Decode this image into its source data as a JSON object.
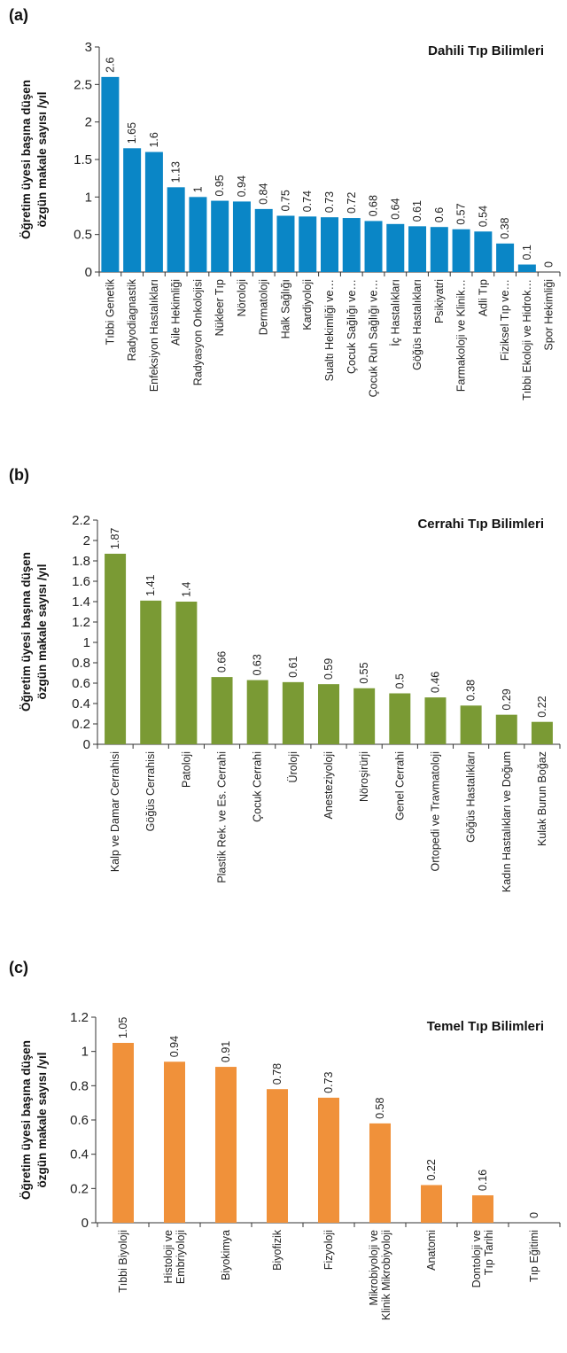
{
  "chart_data": [
    {
      "type": "bar",
      "panel_label": "(a)",
      "title": "Dahili Tıp Bilimleri",
      "ylabel": [
        "Öğretim üyesi başına düşen",
        "özgün makale sayısı /yıl"
      ],
      "ylim": [
        0,
        3
      ],
      "yticks": [
        "0",
        "0.5",
        "1",
        "1.5",
        "2",
        "2.5",
        "3"
      ],
      "ytick_values": [
        0,
        0.5,
        1,
        1.5,
        2,
        2.5,
        3
      ],
      "color": "#0a86c6",
      "categories": [
        "Tıbbi Genetik",
        "Radyodiagnastik",
        "Enfeksiyon Hastalıkları",
        "Aile Hekimliği",
        "Radyasyon Onkolojisi",
        "Nükleer Tıp",
        "Nöroloji",
        "Dermatoloji",
        "Halk Sağlığı",
        "Kardiyoloji",
        "Sualtı Hekimliği ve…",
        "Çocuk Sağlığı ve…",
        "Çocuk Ruh Sağlığı ve…",
        "İç Hastalıkları",
        "Göğüs Hastalıkları",
        "Psikiyatri",
        "Farmakoloji ve Klinik…",
        "Adli Tıp",
        "Fiziksel Tıp ve…",
        "Tıbbi Ekoloji ve Hidrok…",
        "Spor Hekimliği"
      ],
      "values": [
        2.6,
        1.65,
        1.6,
        1.13,
        1,
        0.95,
        0.94,
        0.84,
        0.75,
        0.74,
        0.73,
        0.72,
        0.68,
        0.64,
        0.61,
        0.6,
        0.57,
        0.54,
        0.38,
        0.1,
        0
      ],
      "value_labels": [
        "2.6",
        "1.65",
        "1.6",
        "1.13",
        "1",
        "0.95",
        "0.94",
        "0.84",
        "0.75",
        "0.74",
        "0.73",
        "0.72",
        "0.68",
        "0.64",
        "0.61",
        "0.6",
        "0.57",
        "0.54",
        "0.38",
        "0.1",
        "0"
      ]
    },
    {
      "type": "bar",
      "panel_label": "(b)",
      "title": "Cerrahi Tıp Bilimleri",
      "ylabel": [
        "Öğretim üyesi başına düşen",
        "özgün makale sayısı /yıl"
      ],
      "ylim": [
        0,
        2.2
      ],
      "yticks": [
        "0",
        "0.2",
        "0.4",
        "0.6",
        "0.8",
        "1",
        "1.2",
        "1.4",
        "1.6",
        "1.8",
        "2",
        "2.2"
      ],
      "ytick_values": [
        0,
        0.2,
        0.4,
        0.6,
        0.8,
        1,
        1.2,
        1.4,
        1.6,
        1.8,
        2,
        2.2
      ],
      "color": "#7a9a34",
      "categories": [
        "Kalp ve Damar Cerrahisi",
        "Göğüs Cerrahisi",
        "Patoloji",
        "Plastik Rek. ve Es. Cerrahi",
        "Çocuk Cerrahi",
        "Üroloji",
        "Anesteziyoloji",
        "Nöroşirürji",
        "Genel Cerrahi",
        "Ortopedi ve Travmatoloji",
        "Göğüs Hastalıkları",
        "Kadın Hastalıkları ve Doğum",
        "Kulak Burun Boğaz"
      ],
      "values": [
        1.87,
        1.41,
        1.4,
        0.66,
        0.63,
        0.61,
        0.59,
        0.55,
        0.5,
        0.46,
        0.38,
        0.29,
        0.22
      ],
      "value_labels": [
        "1.87",
        "1.41",
        "1.4",
        "0.66",
        "0.63",
        "0.61",
        "0.59",
        "0.55",
        "0.5",
        "0.46",
        "0.38",
        "0.29",
        "0.22"
      ]
    },
    {
      "type": "bar",
      "panel_label": "(c)",
      "title": "Temel Tıp Bilimleri",
      "ylabel": [
        "Öğretim üyesi başına düşen",
        "özgün makale sayısı /yıl"
      ],
      "ylim": [
        0,
        1.2
      ],
      "yticks": [
        "0",
        "0.2",
        "0.4",
        "0.6",
        "0.8",
        "1",
        "1.2"
      ],
      "ytick_values": [
        0,
        0.2,
        0.4,
        0.6,
        0.8,
        1,
        1.2
      ],
      "color": "#f0913a",
      "categories": [
        [
          "Tıbbi Biyoloji"
        ],
        [
          "Histoloji ve",
          "Embriyoloji"
        ],
        [
          "Biyokimya"
        ],
        [
          "Biyofizik"
        ],
        [
          "Fizyoloji"
        ],
        [
          "Mikrobiyoloji ve",
          "Klinik Mikrobiyoloji"
        ],
        [
          "Anatomi"
        ],
        [
          "Dontoloji ve",
          "Tıp Tarihi"
        ],
        [
          "Tıp Eğitimi"
        ]
      ],
      "values": [
        1.05,
        0.94,
        0.91,
        0.78,
        0.73,
        0.58,
        0.22,
        0.16,
        0
      ],
      "value_labels": [
        "1.05",
        "0.94",
        "0.91",
        "0.78",
        "0.73",
        "0.58",
        "0.22",
        "0.16",
        "0"
      ]
    }
  ]
}
